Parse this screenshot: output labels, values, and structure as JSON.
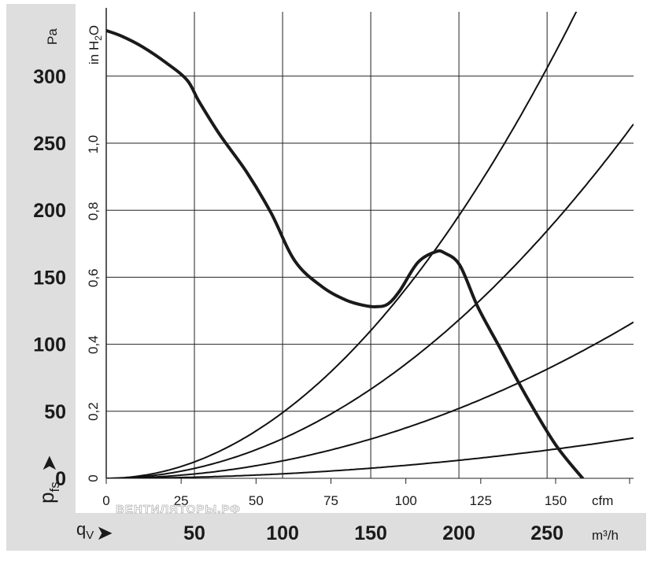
{
  "chart_data": {
    "type": "line",
    "axes": {
      "pressure_pa": {
        "unit_label": "Pa",
        "ticks": [
          "300",
          "250",
          "200",
          "150",
          "100",
          "50",
          "0"
        ],
        "range": [
          0,
          348
        ],
        "symbol_main": "p",
        "symbol_sub": "fs",
        "arrow": "➤"
      },
      "pressure_inh2o": {
        "unit_label": "in H",
        "unit_sub": "2",
        "unit_end": "O",
        "ticks": [
          "1,0",
          "0,8",
          "0,6",
          "0,4",
          "0,2",
          "0"
        ]
      },
      "flow_cfm": {
        "unit_label": "cfm",
        "ticks": [
          "0",
          "25",
          "50",
          "75",
          "100",
          "125",
          "150"
        ],
        "range": [
          0,
          176
        ]
      },
      "flow_m3h": {
        "unit_label": "m³/h",
        "ticks": [
          "50",
          "100",
          "150",
          "200",
          "250"
        ],
        "symbol_main": "q",
        "symbol_sub": "V",
        "arrow": "➤"
      }
    },
    "grid": true,
    "series": [
      {
        "kind": "fan-curve",
        "x_cfm": [
          0,
          5,
          12,
          20,
          27,
          31,
          38,
          47,
          55,
          63,
          72,
          80,
          86,
          90,
          94,
          98,
          104,
          110,
          113,
          118,
          124,
          131,
          140,
          150,
          159
        ],
        "y_pa": [
          334,
          330,
          322,
          310,
          297,
          281,
          256,
          228,
          198,
          162,
          143,
          133,
          129,
          128,
          130,
          140,
          161,
          169,
          168,
          159,
          128,
          99,
          62,
          25,
          0
        ]
      },
      {
        "kind": "system-curve",
        "k": 0.01414
      },
      {
        "kind": "system-curve",
        "k": 0.00853
      },
      {
        "kind": "system-curve",
        "k": 0.00376
      },
      {
        "kind": "system-curve",
        "k": 0.00097
      }
    ]
  },
  "watermark": "ВЕНТИЛЯТОРЫ.РФ"
}
